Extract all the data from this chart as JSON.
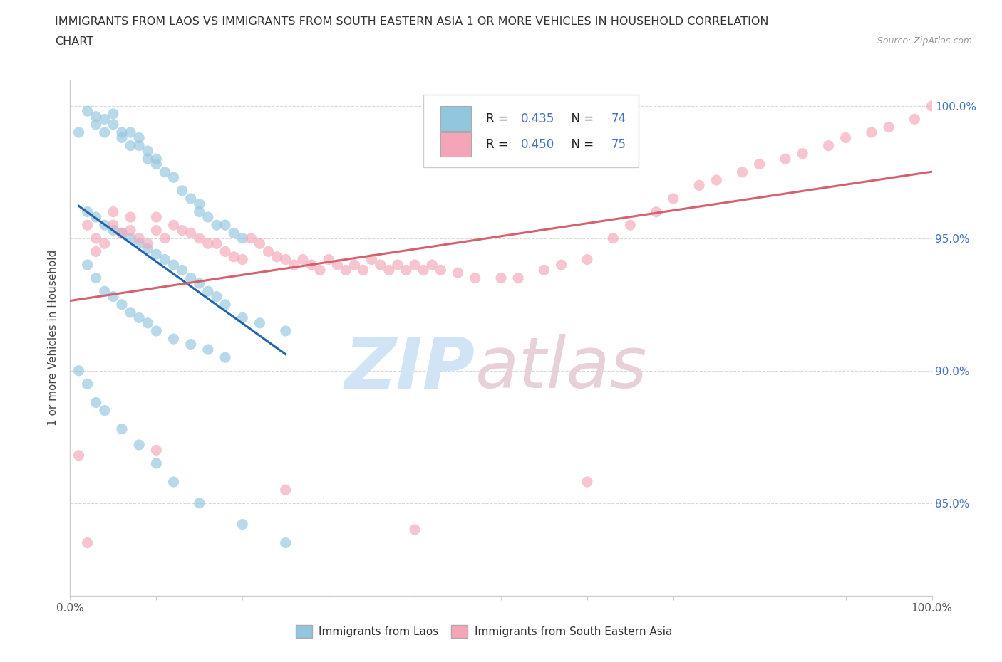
{
  "title_line1": "IMMIGRANTS FROM LAOS VS IMMIGRANTS FROM SOUTH EASTERN ASIA 1 OR MORE VEHICLES IN HOUSEHOLD CORRELATION",
  "title_line2": "CHART",
  "source_text": "Source: ZipAtlas.com",
  "ylabel": "1 or more Vehicles in Household",
  "legend_label1": "Immigrants from Laos",
  "legend_label2": "Immigrants from South Eastern Asia",
  "r1": 0.435,
  "n1": 74,
  "r2": 0.45,
  "n2": 75,
  "color1": "#92c5de",
  "color2": "#f4a6b8",
  "trendline1_color": "#2166ac",
  "trendline2_color": "#d6606d",
  "watermark_zip_color": "#d0e4f5",
  "watermark_atlas_color": "#e8d0d8",
  "background_color": "#ffffff",
  "xlim": [
    0.0,
    1.0
  ],
  "ylim": [
    0.815,
    1.01
  ],
  "yticks": [
    0.85,
    0.9,
    0.95,
    1.0
  ],
  "ytick_labels": [
    "85.0%",
    "90.0%",
    "95.0%",
    "100.0%"
  ],
  "grid_color": "#d8d8d8",
  "spine_color": "#cccccc",
  "tick_label_color": "#555555",
  "right_tick_color": "#4472c4"
}
